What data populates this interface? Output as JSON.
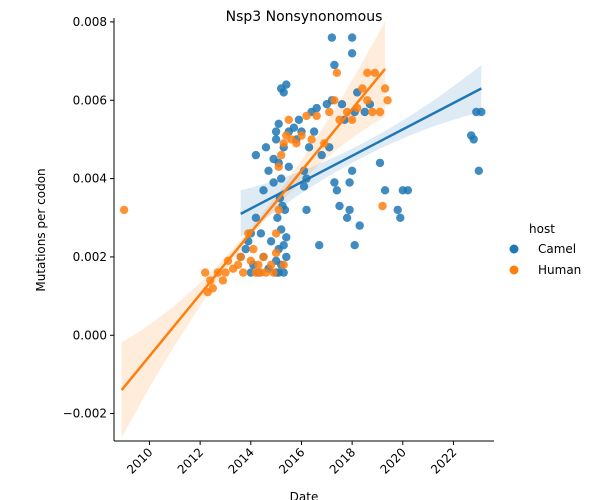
{
  "chart_data": {
    "type": "scatter",
    "title": "Nsp3 Nonsynonomous",
    "xlabel": "Date",
    "ylabel": "Mutations per codon",
    "xlim": [
      2008.6,
      2023.6
    ],
    "ylim": [
      -0.0027,
      0.0081
    ],
    "x_ticks": [
      2010,
      2012,
      2014,
      2016,
      2018,
      2020,
      2022
    ],
    "y_ticks": [
      -0.002,
      0.0,
      0.002,
      0.004,
      0.006,
      0.008
    ],
    "y_tick_labels": [
      "−0.002",
      "0.000",
      "0.002",
      "0.004",
      "0.006",
      "0.008"
    ],
    "legend": {
      "title": "host",
      "placement": "right"
    },
    "series": [
      {
        "name": "Camel",
        "color": "#1f77b4",
        "points": [
          [
            2013.6,
            0.002
          ],
          [
            2013.8,
            0.0022
          ],
          [
            2013.9,
            0.0024
          ],
          [
            2014.0,
            0.0016
          ],
          [
            2014.0,
            0.0026
          ],
          [
            2014.1,
            0.0018
          ],
          [
            2014.2,
            0.003
          ],
          [
            2014.2,
            0.0046
          ],
          [
            2014.3,
            0.0016
          ],
          [
            2014.4,
            0.0026
          ],
          [
            2014.5,
            0.002
          ],
          [
            2014.5,
            0.0037
          ],
          [
            2014.6,
            0.0048
          ],
          [
            2014.7,
            0.0042
          ],
          [
            2014.7,
            0.0017
          ],
          [
            2014.8,
            0.0024
          ],
          [
            2014.9,
            0.0039
          ],
          [
            2014.9,
            0.0045
          ],
          [
            2015.0,
            0.0016
          ],
          [
            2015.0,
            0.0019
          ],
          [
            2015.0,
            0.005
          ],
          [
            2015.0,
            0.0052
          ],
          [
            2015.05,
            0.003
          ],
          [
            2015.1,
            0.0016
          ],
          [
            2015.1,
            0.0022
          ],
          [
            2015.1,
            0.0044
          ],
          [
            2015.1,
            0.0054
          ],
          [
            2015.15,
            0.0035
          ],
          [
            2015.2,
            0.0018
          ],
          [
            2015.2,
            0.0027
          ],
          [
            2015.2,
            0.004
          ],
          [
            2015.2,
            0.0063
          ],
          [
            2015.25,
            0.0033
          ],
          [
            2015.3,
            0.0016
          ],
          [
            2015.3,
            0.0023
          ],
          [
            2015.3,
            0.0048
          ],
          [
            2015.3,
            0.0062
          ],
          [
            2015.35,
            0.0032
          ],
          [
            2015.4,
            0.002
          ],
          [
            2015.4,
            0.0025
          ],
          [
            2015.4,
            0.0064
          ],
          [
            2015.5,
            0.0043
          ],
          [
            2015.5,
            0.0052
          ],
          [
            2015.7,
            0.0053
          ],
          [
            2015.8,
            0.005
          ],
          [
            2015.9,
            0.0055
          ],
          [
            2016.0,
            0.0052
          ],
          [
            2016.1,
            0.0042
          ],
          [
            2016.1,
            0.0038
          ],
          [
            2016.2,
            0.004
          ],
          [
            2016.2,
            0.0032
          ],
          [
            2016.3,
            0.0048
          ],
          [
            2016.4,
            0.0057
          ],
          [
            2016.5,
            0.0052
          ],
          [
            2016.6,
            0.0058
          ],
          [
            2016.7,
            0.0023
          ],
          [
            2016.8,
            0.0046
          ],
          [
            2017.0,
            0.0059
          ],
          [
            2017.1,
            0.0048
          ],
          [
            2017.2,
            0.006
          ],
          [
            2017.2,
            0.0076
          ],
          [
            2017.3,
            0.0069
          ],
          [
            2017.3,
            0.0039
          ],
          [
            2017.4,
            0.0037
          ],
          [
            2017.5,
            0.0033
          ],
          [
            2017.6,
            0.0059
          ],
          [
            2017.7,
            0.0055
          ],
          [
            2017.8,
            0.003
          ],
          [
            2017.9,
            0.0032
          ],
          [
            2017.9,
            0.0039
          ],
          [
            2018.0,
            0.0042
          ],
          [
            2018.0,
            0.0076
          ],
          [
            2018.0,
            0.0072
          ],
          [
            2018.1,
            0.0057
          ],
          [
            2018.1,
            0.0023
          ],
          [
            2018.2,
            0.0062
          ],
          [
            2018.3,
            0.0028
          ],
          [
            2018.5,
            0.0057
          ],
          [
            2018.7,
            0.0059
          ],
          [
            2019.1,
            0.0044
          ],
          [
            2019.3,
            0.0037
          ],
          [
            2019.8,
            0.0032
          ],
          [
            2019.9,
            0.003
          ],
          [
            2020.0,
            0.0037
          ],
          [
            2020.2,
            0.0037
          ],
          [
            2022.7,
            0.0051
          ],
          [
            2022.8,
            0.005
          ],
          [
            2022.9,
            0.0057
          ],
          [
            2023.0,
            0.0042
          ],
          [
            2023.1,
            0.0057
          ]
        ],
        "regression": {
          "x": [
            2013.6,
            2023.1
          ],
          "y": [
            0.0031,
            0.0063
          ]
        }
      },
      {
        "name": "Human",
        "color": "#ff7f0e",
        "points": [
          [
            2009.0,
            0.0032
          ],
          [
            2012.2,
            0.0016
          ],
          [
            2012.3,
            0.0011
          ],
          [
            2012.4,
            0.0014
          ],
          [
            2012.5,
            0.0012
          ],
          [
            2012.7,
            0.0016
          ],
          [
            2012.9,
            0.0014
          ],
          [
            2013.0,
            0.0016
          ],
          [
            2013.1,
            0.0019
          ],
          [
            2013.3,
            0.0017
          ],
          [
            2013.5,
            0.0018
          ],
          [
            2013.6,
            0.002
          ],
          [
            2013.7,
            0.0016
          ],
          [
            2013.9,
            0.0026
          ],
          [
            2014.0,
            0.0019
          ],
          [
            2014.1,
            0.0022
          ],
          [
            2014.2,
            0.0016
          ],
          [
            2014.3,
            0.0018
          ],
          [
            2014.4,
            0.0016
          ],
          [
            2014.5,
            0.002
          ],
          [
            2014.6,
            0.0016
          ],
          [
            2014.8,
            0.0018
          ],
          [
            2014.9,
            0.0016
          ],
          [
            2015.0,
            0.0021
          ],
          [
            2015.0,
            0.0026
          ],
          [
            2015.1,
            0.0032
          ],
          [
            2015.1,
            0.0043
          ],
          [
            2015.2,
            0.0046
          ],
          [
            2015.3,
            0.0018
          ],
          [
            2015.3,
            0.0049
          ],
          [
            2015.4,
            0.0051
          ],
          [
            2015.5,
            0.0055
          ],
          [
            2015.6,
            0.005
          ],
          [
            2015.8,
            0.0049
          ],
          [
            2016.0,
            0.0051
          ],
          [
            2016.2,
            0.0056
          ],
          [
            2016.4,
            0.005
          ],
          [
            2016.6,
            0.0056
          ],
          [
            2016.9,
            0.0049
          ],
          [
            2017.1,
            0.0057
          ],
          [
            2017.3,
            0.006
          ],
          [
            2017.4,
            0.0067
          ],
          [
            2017.5,
            0.0055
          ],
          [
            2017.8,
            0.0057
          ],
          [
            2018.0,
            0.0055
          ],
          [
            2018.2,
            0.0058
          ],
          [
            2018.4,
            0.0063
          ],
          [
            2018.6,
            0.006
          ],
          [
            2018.6,
            0.0067
          ],
          [
            2018.8,
            0.0057
          ],
          [
            2018.9,
            0.0067
          ],
          [
            2019.1,
            0.0057
          ],
          [
            2019.2,
            0.0033
          ],
          [
            2019.3,
            0.0063
          ],
          [
            2019.4,
            0.006
          ]
        ],
        "regression": {
          "x": [
            2008.9,
            2019.3
          ],
          "y": [
            -0.0014,
            0.0068
          ]
        }
      }
    ]
  }
}
